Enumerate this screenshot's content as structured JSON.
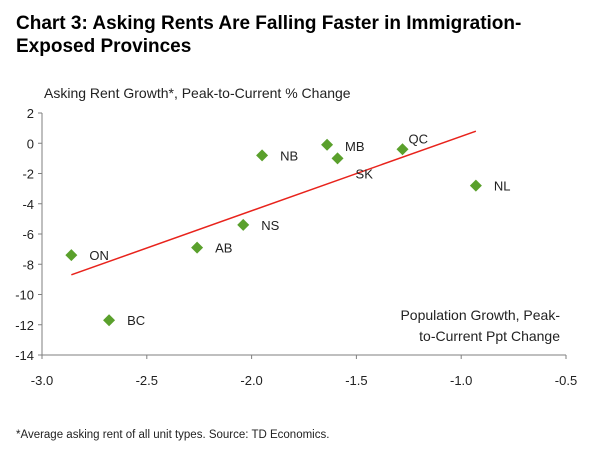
{
  "chart_data": {
    "type": "scatter",
    "title": "Chart 3: Asking Rents Are Falling Faster in Immigration-Exposed Provinces",
    "ylabel": "Asking Rent Growth*, Peak-to-Current % Change",
    "xlabel_lines": [
      "Population Growth, Peak-",
      "to-Current Ppt Change"
    ],
    "footnote": "*Average asking rent of all unit types. Source: TD Economics.",
    "xlim": [
      -3.0,
      -0.5
    ],
    "ylim": [
      -14,
      2
    ],
    "x_ticks": [
      "-3.0",
      "-2.5",
      "-2.0",
      "-1.5",
      "-1.0",
      "-0.5"
    ],
    "y_ticks": [
      "2",
      "0",
      "-2",
      "-4",
      "-6",
      "-8",
      "-10",
      "-12",
      "-14"
    ],
    "points": [
      {
        "label": "ON",
        "x": -2.86,
        "y": -7.4
      },
      {
        "label": "BC",
        "x": -2.68,
        "y": -11.7
      },
      {
        "label": "AB",
        "x": -2.26,
        "y": -6.9
      },
      {
        "label": "NS",
        "x": -2.04,
        "y": -5.4
      },
      {
        "label": "NB",
        "x": -1.95,
        "y": -0.8
      },
      {
        "label": "MB",
        "x": -1.64,
        "y": -0.1
      },
      {
        "label": "SK",
        "x": -1.59,
        "y": -1.0
      },
      {
        "label": "QC",
        "x": -1.28,
        "y": -0.4
      },
      {
        "label": "NL",
        "x": -0.93,
        "y": -2.8
      }
    ],
    "trendline": {
      "x": [
        -2.86,
        -0.93
      ],
      "y": [
        -8.7,
        0.8
      ]
    },
    "colors": {
      "points": "#5aa02c",
      "trendline": "#e8231c",
      "axis": "#7f7f7f"
    }
  }
}
